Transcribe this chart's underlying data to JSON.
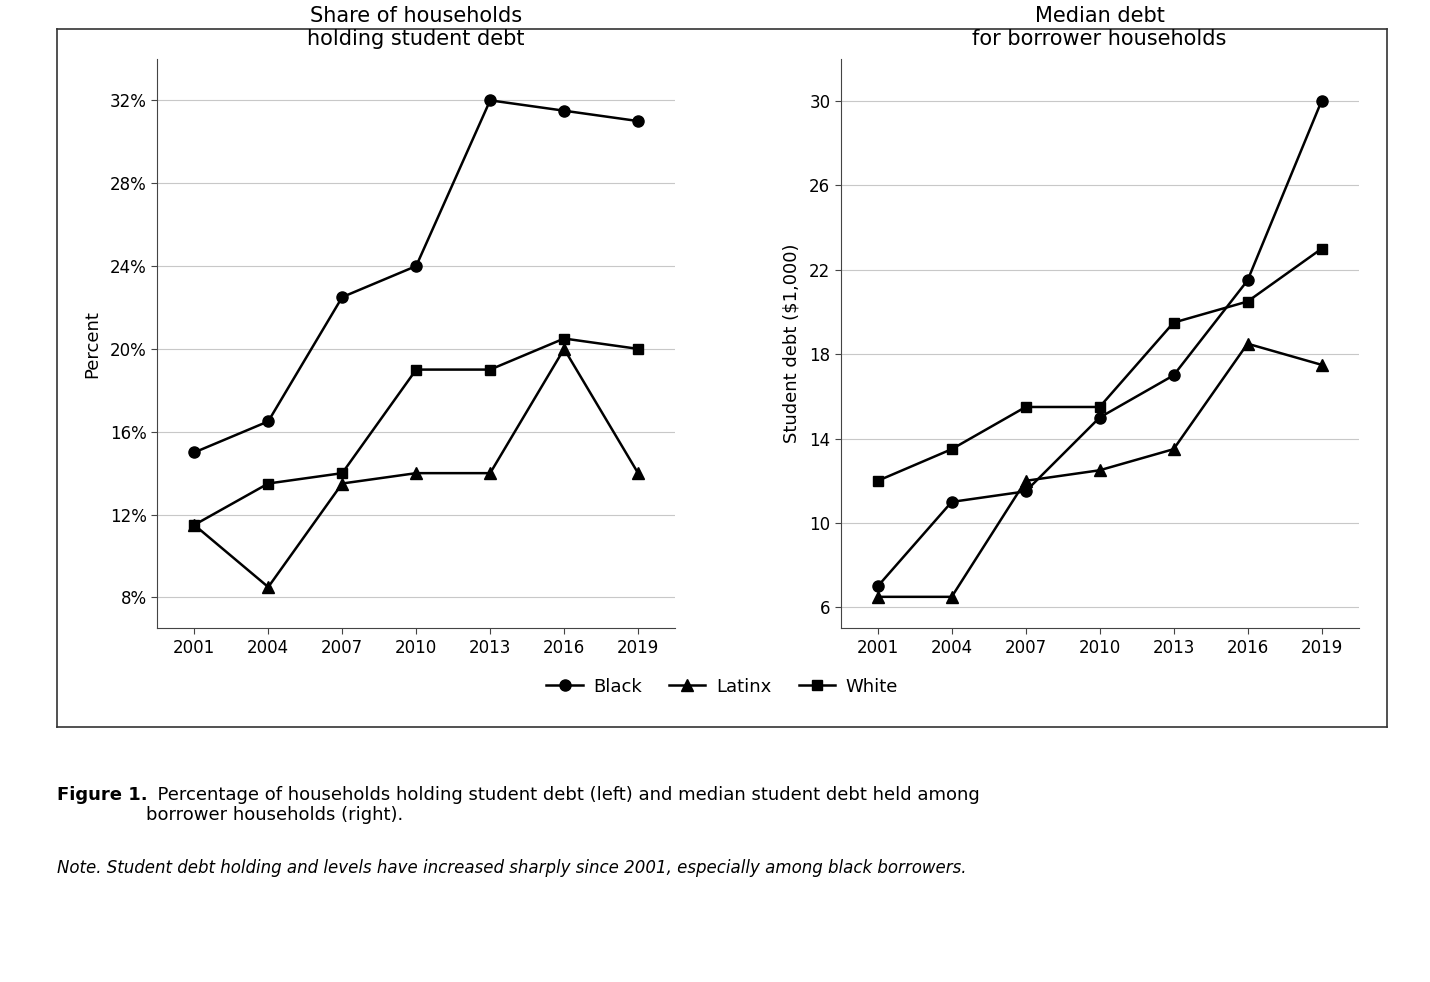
{
  "years": [
    2001,
    2004,
    2007,
    2010,
    2013,
    2016,
    2019
  ],
  "left": {
    "title": "Share of households\nholding student debt",
    "ylabel": "Percent",
    "yticks": [
      8,
      12,
      16,
      20,
      24,
      28,
      32
    ],
    "yticklabels": [
      "8%",
      "12%",
      "16%",
      "20%",
      "24%",
      "28%",
      "32%"
    ],
    "ylim": [
      6.5,
      34
    ],
    "black": [
      15.0,
      16.5,
      22.5,
      24.0,
      32.0,
      31.5,
      31.0
    ],
    "latinx": [
      11.5,
      8.5,
      13.5,
      14.0,
      14.0,
      20.0,
      14.0
    ],
    "white": [
      11.5,
      13.5,
      14.0,
      19.0,
      19.0,
      20.5,
      20.0
    ]
  },
  "right": {
    "title": "Median debt\nfor borrower households",
    "ylabel": "Student debt ($1,000)",
    "yticks": [
      6,
      10,
      14,
      18,
      22,
      26,
      30
    ],
    "yticklabels": [
      "6",
      "10",
      "14",
      "18",
      "22",
      "26",
      "30"
    ],
    "ylim": [
      5.0,
      32
    ],
    "black": [
      7.0,
      11.0,
      11.5,
      15.0,
      17.0,
      21.5,
      30.0
    ],
    "latinx": [
      6.5,
      6.5,
      12.0,
      12.5,
      13.5,
      18.5,
      17.5
    ],
    "white": [
      12.0,
      13.5,
      15.5,
      15.5,
      19.5,
      20.5,
      23.0
    ]
  },
  "legend_labels": [
    "Black",
    "Latinx",
    "White"
  ],
  "line_color": "#000000",
  "figure_caption_bold": "Figure 1.",
  "figure_caption_rest": "  Percentage of households holding student debt (left) and median student debt held among\nborrower households (right).",
  "figure_note": "Note. Student debt holding and levels have increased sharply since 2001, especially among black borrowers.",
  "background_color": "#ffffff",
  "xtick_fontsize": 12,
  "ytick_fontsize": 12,
  "title_fontsize": 15,
  "ylabel_fontsize": 13,
  "legend_fontsize": 13,
  "caption_fontsize": 13,
  "note_fontsize": 12
}
